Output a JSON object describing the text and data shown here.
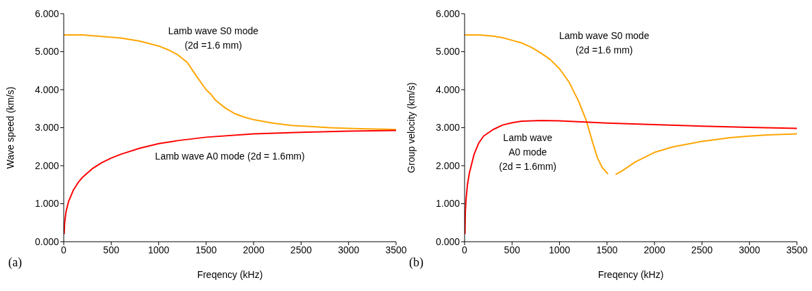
{
  "chart_data": [
    {
      "type": "line",
      "title": "(a)",
      "xlabel": "Freqency (kHz)",
      "ylabel": "Wave speed (km/s)",
      "xlim": [
        0,
        3500
      ],
      "xticks": [
        0,
        500,
        1000,
        1500,
        2000,
        2500,
        3000,
        3500
      ],
      "ylim": [
        0,
        6
      ],
      "yticks": [
        {
          "value": 0,
          "label": "0.000"
        },
        {
          "value": 1,
          "label": "1.000"
        },
        {
          "value": 2,
          "label": "2.000"
        },
        {
          "value": 3,
          "label": "3.000"
        },
        {
          "value": 4,
          "label": "4.000"
        },
        {
          "value": 5,
          "label": "5.000"
        },
        {
          "value": 6,
          "label": "6.000"
        }
      ],
      "grid": false,
      "legend": false,
      "marker": "none",
      "line_style": "solid",
      "series": [
        {
          "name": "Lamb wave S0 mode\n(2d =1.6 mm)",
          "color": "#ffa500",
          "x": [
            0,
            200,
            400,
            600,
            800,
            1000,
            1100,
            1200,
            1300,
            1400,
            1500,
            1550,
            1600,
            1700,
            1800,
            1900,
            2000,
            2200,
            2400,
            2600,
            2800,
            3000,
            3200,
            3400,
            3500
          ],
          "values": [
            5.44,
            5.44,
            5.4,
            5.36,
            5.28,
            5.15,
            5.05,
            4.92,
            4.72,
            4.35,
            4.0,
            3.88,
            3.72,
            3.52,
            3.37,
            3.28,
            3.21,
            3.12,
            3.06,
            3.03,
            3.0,
            2.98,
            2.97,
            2.96,
            2.95
          ]
        },
        {
          "name": "Lamb wave A0 mode (2d = 1.6mm)",
          "color": "#ff0000",
          "x": [
            4,
            10,
            25,
            50,
            100,
            150,
            200,
            300,
            400,
            500,
            600,
            800,
            1000,
            1200,
            1500,
            2000,
            2500,
            3000,
            3500
          ],
          "values": [
            0.2,
            0.5,
            0.8,
            1.05,
            1.35,
            1.55,
            1.7,
            1.92,
            2.08,
            2.2,
            2.3,
            2.46,
            2.58,
            2.66,
            2.75,
            2.84,
            2.88,
            2.91,
            2.93
          ]
        }
      ]
    },
    {
      "type": "line",
      "title": "(b)",
      "xlabel": "Freqency (kHz)",
      "ylabel": "Group velocity (km/s)",
      "xlim": [
        0,
        3500
      ],
      "xticks": [
        0,
        500,
        1000,
        1500,
        2000,
        2500,
        3000,
        3500
      ],
      "ylim": [
        0,
        6
      ],
      "yticks": [
        {
          "value": 0,
          "label": "0.000"
        },
        {
          "value": 1,
          "label": "1.000"
        },
        {
          "value": 2,
          "label": "2.000"
        },
        {
          "value": 3,
          "label": "3.000"
        },
        {
          "value": 4,
          "label": "4.000"
        },
        {
          "value": 5,
          "label": "5.000"
        },
        {
          "value": 6,
          "label": "6.000"
        }
      ],
      "grid": false,
      "legend": false,
      "marker": "none",
      "line_style": "solid",
      "series": [
        {
          "name": "Lamb wave S0 mode\n(2d =1.6 mm)",
          "color": "#ffa500",
          "x": [
            0,
            150,
            300,
            400,
            500,
            600,
            700,
            800,
            900,
            1000,
            1100,
            1200,
            1280,
            1350,
            1400,
            1450,
            1510,
            1550,
            1590,
            1650,
            1800,
            2000,
            2200,
            2500,
            2800,
            3000,
            3200,
            3500
          ],
          "values": [
            5.44,
            5.44,
            5.41,
            5.37,
            5.3,
            5.23,
            5.12,
            4.97,
            4.8,
            4.55,
            4.2,
            3.7,
            3.2,
            2.6,
            2.2,
            1.95,
            1.78,
            null,
            1.77,
            1.85,
            2.1,
            2.35,
            2.5,
            2.64,
            2.74,
            2.78,
            2.81,
            2.84
          ]
        },
        {
          "name": "Lamb wave\nA0 mode\n(2d = 1.6mm)",
          "color": "#ff0000",
          "x": [
            4,
            8,
            15,
            30,
            50,
            100,
            150,
            200,
            300,
            400,
            500,
            600,
            800,
            1000,
            1500,
            2000,
            2500,
            3000,
            3500
          ],
          "values": [
            0.2,
            0.8,
            1.1,
            1.5,
            1.8,
            2.3,
            2.6,
            2.78,
            2.95,
            3.07,
            3.13,
            3.17,
            3.19,
            3.18,
            3.12,
            3.08,
            3.04,
            3.01,
            2.98
          ]
        }
      ]
    }
  ]
}
